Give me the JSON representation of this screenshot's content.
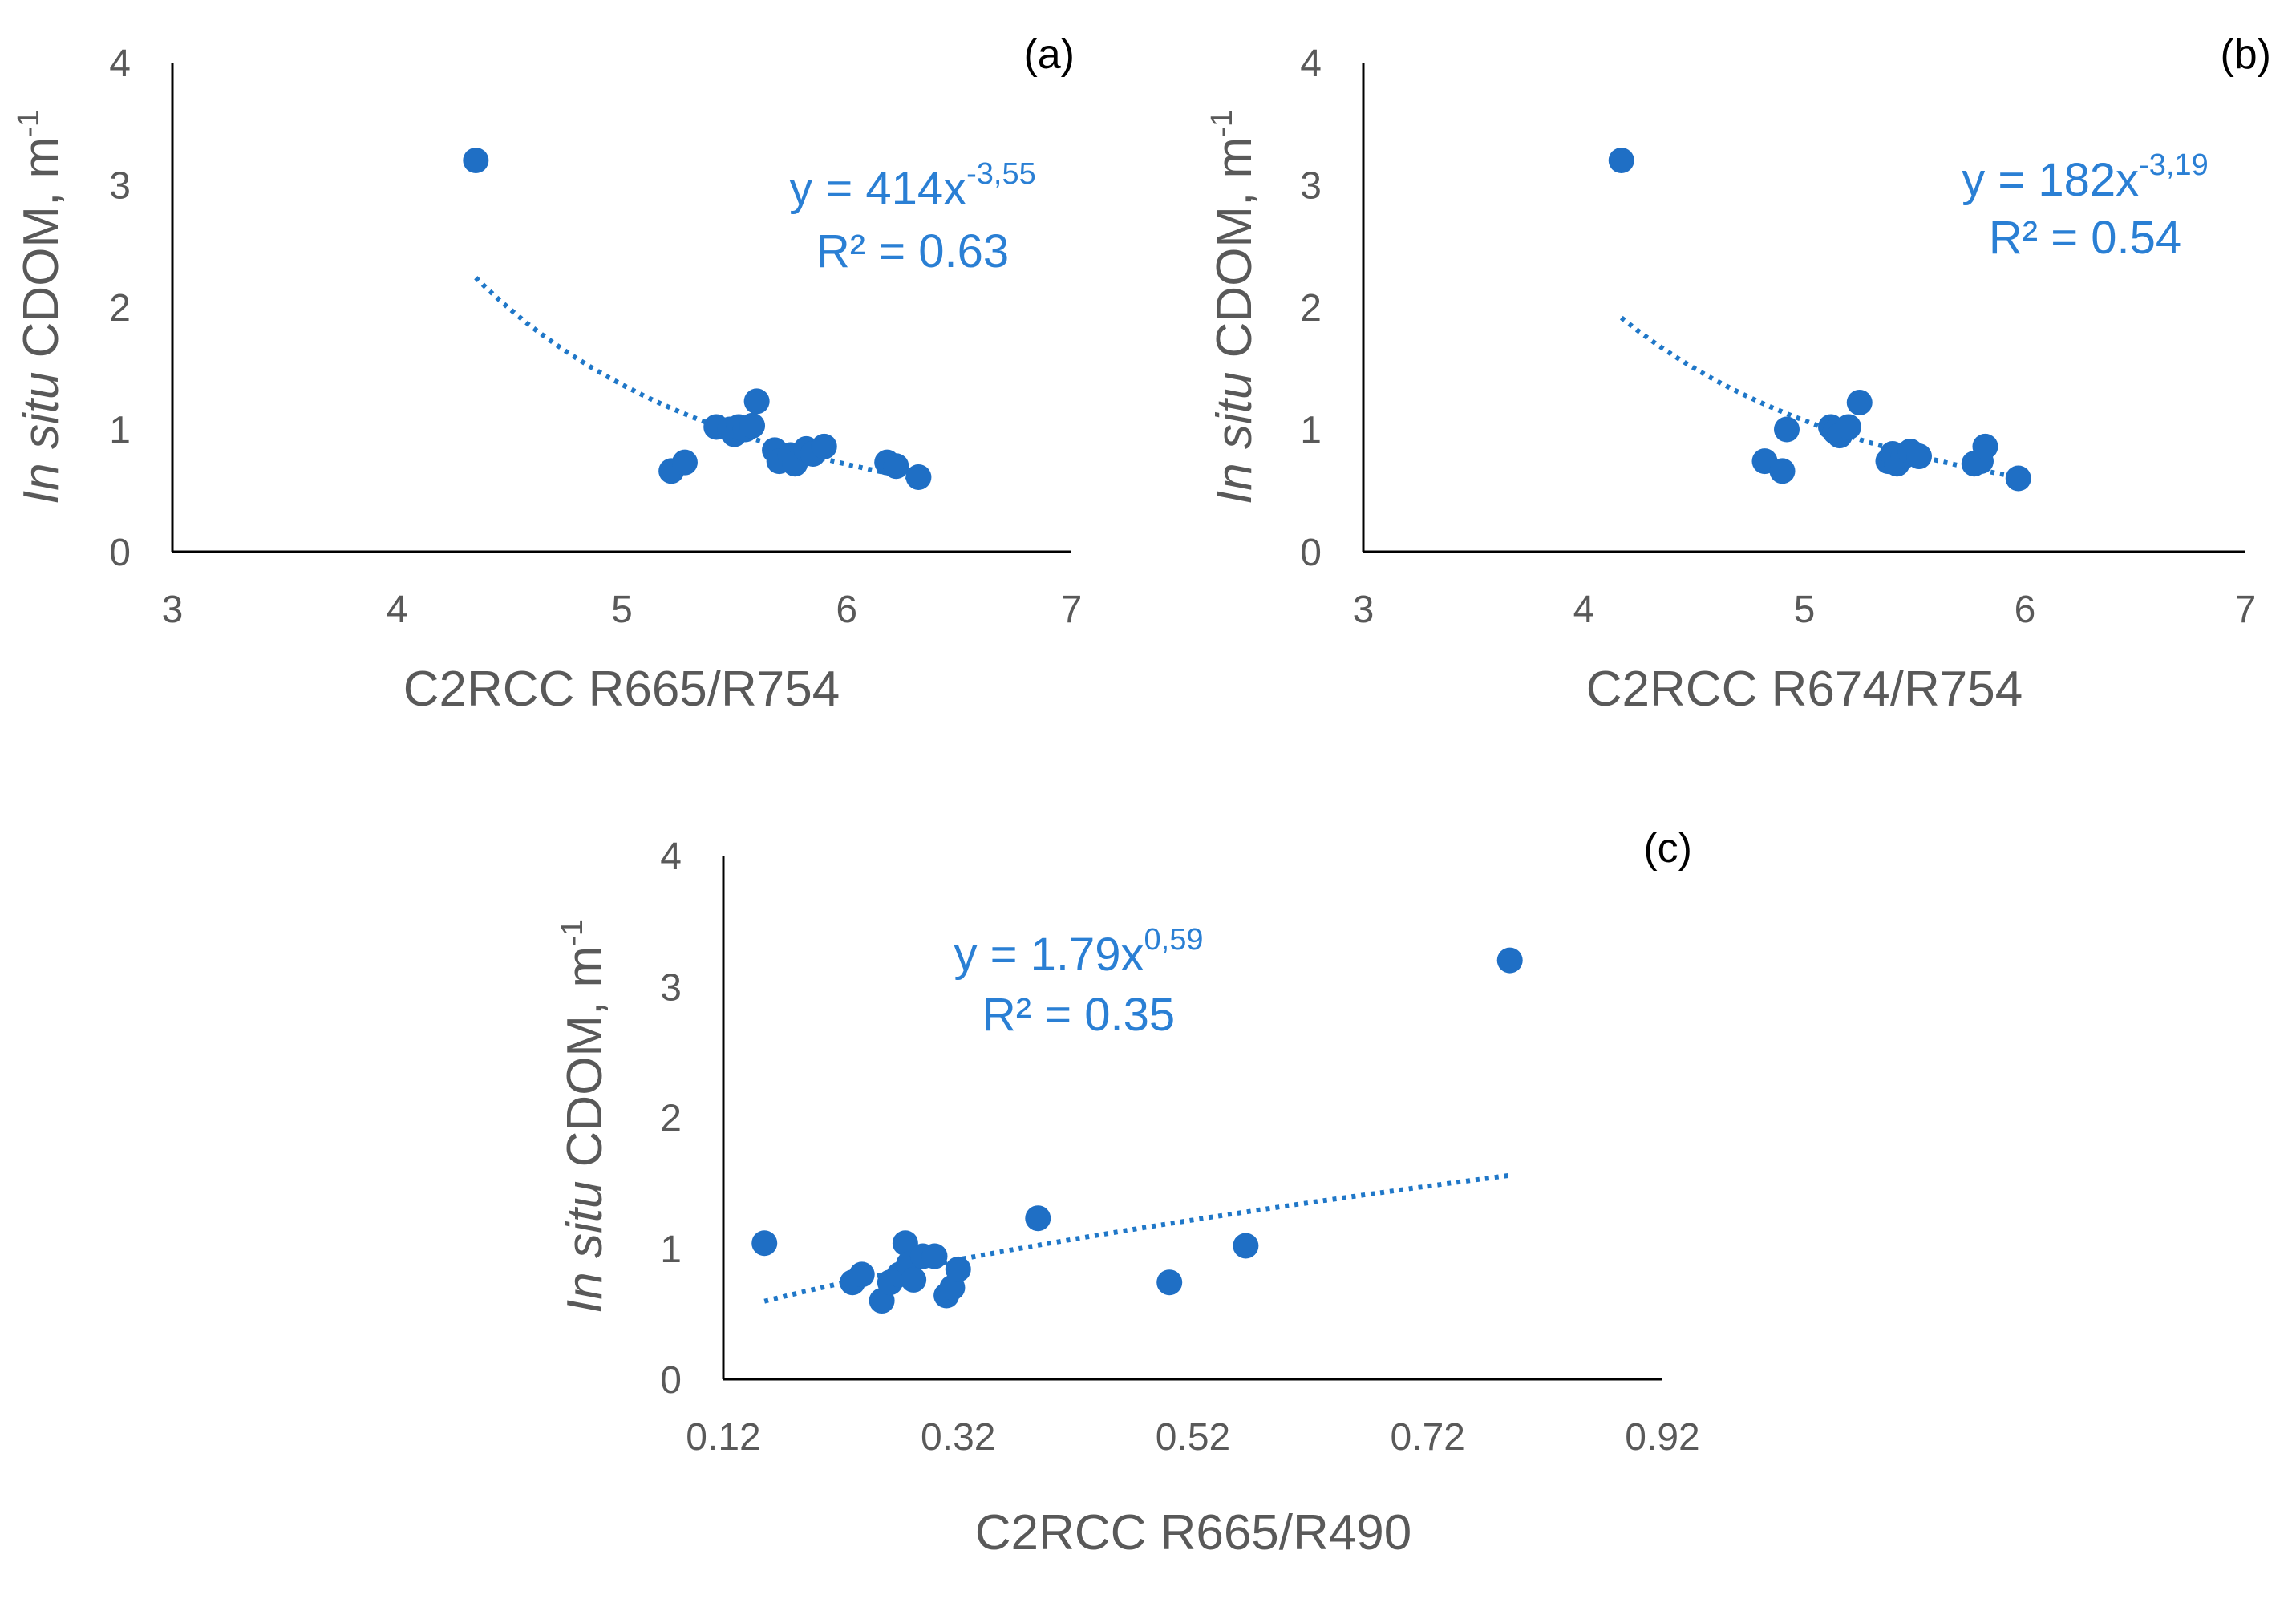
{
  "colors": {
    "points": "#1f6fc5",
    "trendline": "#1f77c8",
    "equation": "#2a7fd4",
    "axis": "#000000",
    "ticks": "#595959"
  },
  "chart_data": [
    {
      "id": "a",
      "type": "scatter",
      "panel_label": "(a)",
      "xlabel": "C2RCC R665/R754",
      "ylabel_italic": "In situ",
      "ylabel_rest": " CDOM, m",
      "ylabel_sup": "-1",
      "xlim": [
        3,
        7
      ],
      "ylim": [
        0,
        4
      ],
      "xticks": [
        3,
        4,
        5,
        6,
        7
      ],
      "yticks": [
        0,
        1,
        2,
        3,
        4
      ],
      "tick_labels_x": [
        "3",
        "4",
        "5",
        "6",
        "7"
      ],
      "tick_labels_y": [
        "0",
        "1",
        "2",
        "3",
        "4"
      ],
      "equation_main": "y = 414x",
      "equation_exp": "-3,55",
      "r2": "R² = 0.63",
      "fit": {
        "model": "power",
        "a": 414,
        "b": -3.55,
        "x_from": 4.35,
        "x_to": 6.32
      },
      "x": [
        4.35,
        5.22,
        5.28,
        5.42,
        5.48,
        5.5,
        5.52,
        5.55,
        5.58,
        5.6,
        5.68,
        5.7,
        5.75,
        5.77,
        5.82,
        5.85,
        5.9,
        6.18,
        6.22,
        6.32
      ],
      "y": [
        3.2,
        0.66,
        0.73,
        1.02,
        1.0,
        0.96,
        1.02,
        1.0,
        1.03,
        1.23,
        0.83,
        0.74,
        0.79,
        0.72,
        0.84,
        0.8,
        0.86,
        0.73,
        0.7,
        0.61
      ]
    },
    {
      "id": "b",
      "type": "scatter",
      "panel_label": "(b)",
      "xlabel": "C2RCC R674/R754",
      "ylabel_italic": "In situ",
      "ylabel_rest": " CDOM, m",
      "ylabel_sup": "-1",
      "xlim": [
        3,
        7
      ],
      "ylim": [
        0,
        4
      ],
      "xticks": [
        3,
        4,
        5,
        6,
        7
      ],
      "yticks": [
        0,
        1,
        2,
        3,
        4
      ],
      "tick_labels_x": [
        "3",
        "4",
        "5",
        "6",
        "7"
      ],
      "tick_labels_y": [
        "0",
        "1",
        "2",
        "3",
        "4"
      ],
      "equation_main": "y = 182x",
      "equation_exp": "-3,19",
      "r2": "R² = 0.54",
      "fit": {
        "model": "power",
        "a": 182,
        "b": -3.19,
        "x_from": 4.17,
        "x_to": 5.97
      },
      "x": [
        4.17,
        4.82,
        4.9,
        4.92,
        5.12,
        5.14,
        5.16,
        5.2,
        5.25,
        5.38,
        5.4,
        5.42,
        5.45,
        5.48,
        5.52,
        5.77,
        5.8,
        5.82,
        5.97
      ],
      "y": [
        3.2,
        0.74,
        0.66,
        1.0,
        1.02,
        0.98,
        0.95,
        1.02,
        1.22,
        0.74,
        0.8,
        0.72,
        0.78,
        0.82,
        0.78,
        0.72,
        0.74,
        0.86,
        0.6
      ]
    },
    {
      "id": "c",
      "type": "scatter",
      "panel_label": "(c)",
      "xlabel": "C2RCC R665/R490",
      "ylabel_italic": "In situ",
      "ylabel_rest": " CDOM, m",
      "ylabel_sup": "-1",
      "xlim": [
        0.12,
        0.92
      ],
      "ylim": [
        0,
        4
      ],
      "xticks": [
        0.12,
        0.32,
        0.52,
        0.72,
        0.92
      ],
      "yticks": [
        0,
        1,
        2,
        3,
        4
      ],
      "tick_labels_x": [
        "0.12",
        "0.32",
        "0.52",
        "0.72",
        "0.92"
      ],
      "tick_labels_y": [
        "0",
        "1",
        "2",
        "3",
        "4"
      ],
      "equation_main": "y = 1.79x",
      "equation_exp": "0,59",
      "r2": "R² = 0.35",
      "fit": {
        "model": "power",
        "a": 1.79,
        "b": 0.59,
        "x_from": 0.155,
        "x_to": 0.79
      },
      "x": [
        0.155,
        0.23,
        0.238,
        0.255,
        0.262,
        0.27,
        0.275,
        0.278,
        0.282,
        0.29,
        0.3,
        0.31,
        0.315,
        0.32,
        0.388,
        0.5,
        0.565,
        0.79
      ],
      "y": [
        1.04,
        0.74,
        0.8,
        0.6,
        0.74,
        0.8,
        1.04,
        0.88,
        0.76,
        0.94,
        0.94,
        0.64,
        0.7,
        0.84,
        1.23,
        0.74,
        1.02,
        3.2
      ]
    }
  ]
}
